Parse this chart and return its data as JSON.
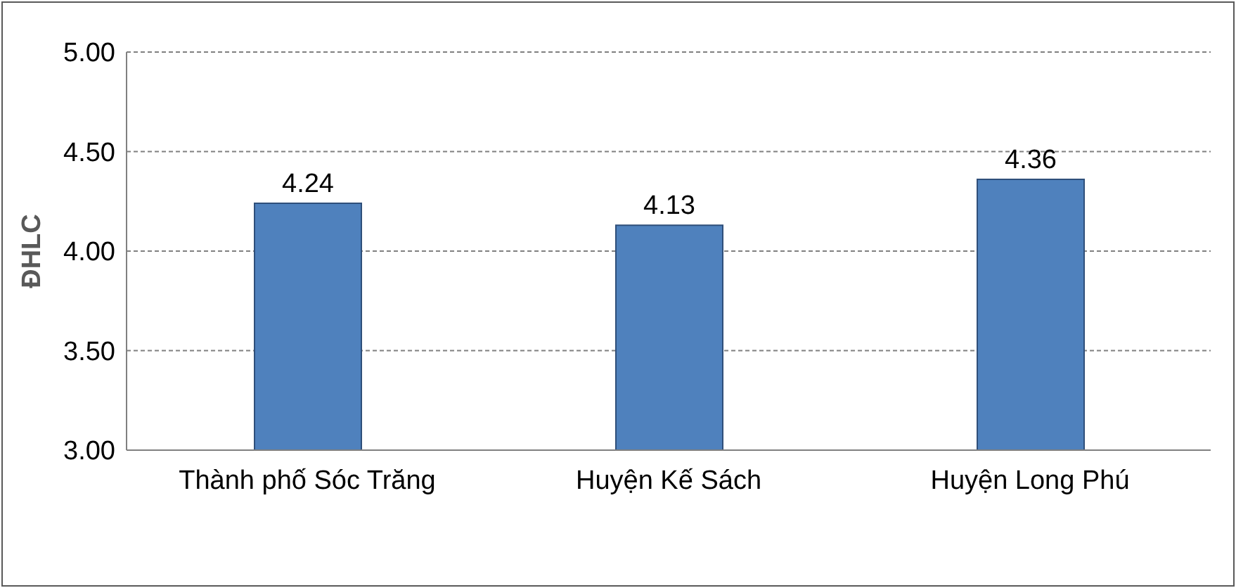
{
  "chart_data": {
    "type": "bar",
    "ylabel": "ĐHLC",
    "categories": [
      "Thành phố Sóc Trăng",
      "Huyện Kế Sách",
      "Huyện Long Phú"
    ],
    "values": [
      4.24,
      4.13,
      4.36
    ],
    "color": "#4f81bd",
    "ylim": [
      3,
      5
    ],
    "yticks": [
      {
        "value": 3,
        "label": "3.00"
      },
      {
        "value": 3.5,
        "label": "3.50"
      },
      {
        "value": 4,
        "label": "4.00"
      },
      {
        "value": 4.5,
        "label": "4.50"
      },
      {
        "value": 5,
        "label": "5.00"
      }
    ],
    "grid": "y",
    "data_labels": true
  }
}
